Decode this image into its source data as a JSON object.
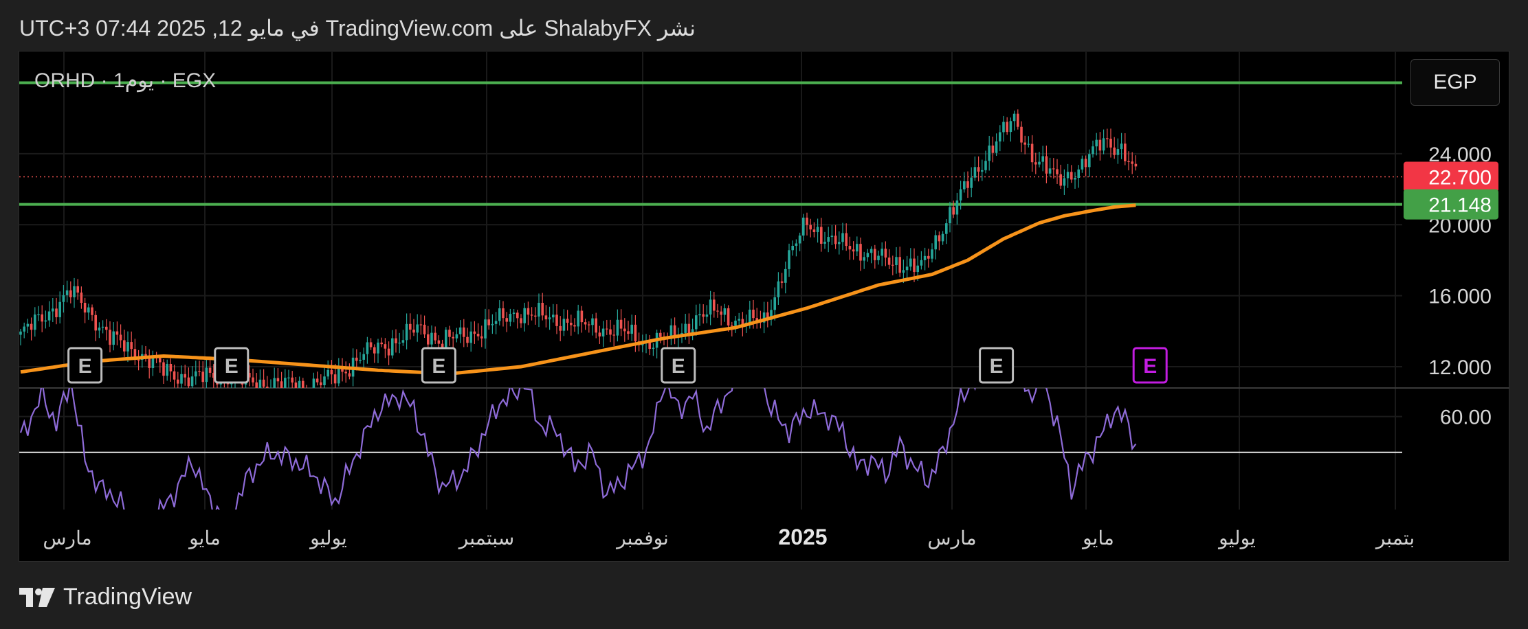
{
  "header": {
    "published_text": "نشر ShalabyFX على TradingView.com في مايو 12, 2025 07:44 UTC+3"
  },
  "symbol_line": "ORHD · 1يوم · EGX",
  "currency": "EGP",
  "footer": {
    "brand": "TradingView",
    "logo_icon": "tradingview-logo-icon"
  },
  "colors": {
    "up": "#26a69a",
    "down": "#ef5350",
    "ema": "#f7931a",
    "rsi": "#8e6bd8",
    "levels": "#4caf50",
    "last_price_badge": "#f23645",
    "support_badge": "#43a047",
    "earnings_future": "#c21de0"
  },
  "chart_data": [
    {
      "type": "candlestick",
      "title": "ORHD · 1يوم · EGX",
      "x_ticks": [
        "مارس",
        "مايو",
        "يوليو",
        "سبتمبر",
        "نوفمبر",
        "2025",
        "مارس",
        "مايو",
        "يوليو",
        "بتمبر"
      ],
      "y_ticks": [
        "24.000",
        "20.000",
        "16.000",
        "12.000"
      ],
      "ylim": [
        10.8,
        29.8
      ],
      "last_price": 22.7,
      "horizontal_levels": [
        28.0,
        21.148
      ],
      "badges": [
        {
          "label": "22.700",
          "value": 22.7,
          "color": "#f23645"
        },
        {
          "label": "21.148",
          "value": 21.148,
          "color": "#43a047"
        }
      ],
      "earnings_markers": [
        {
          "label": "E",
          "date_index": 18,
          "future": false
        },
        {
          "label": "E",
          "date_index": 59,
          "future": false
        },
        {
          "label": "E",
          "date_index": 117,
          "future": false
        },
        {
          "label": "E",
          "date_index": 184,
          "future": false
        },
        {
          "label": "E",
          "date_index": 273,
          "future": false
        },
        {
          "label": "E",
          "date_index": 316,
          "future": true
        }
      ],
      "series": [
        {
          "name": "close",
          "anchors": [
            [
              0,
              13.8
            ],
            [
              8,
              15.1
            ],
            [
              14,
              16.2
            ],
            [
              19,
              15.2
            ],
            [
              25,
              13.6
            ],
            [
              32,
              12.9
            ],
            [
              40,
              11.8
            ],
            [
              48,
              11.3
            ],
            [
              56,
              11.6
            ],
            [
              64,
              11.1
            ],
            [
              72,
              11.0
            ],
            [
              80,
              10.9
            ],
            [
              88,
              11.4
            ],
            [
              95,
              12.6
            ],
            [
              103,
              13.3
            ],
            [
              111,
              14.1
            ],
            [
              118,
              13.5
            ],
            [
              124,
              13.7
            ],
            [
              132,
              14.4
            ],
            [
              139,
              15.1
            ],
            [
              146,
              14.8
            ],
            [
              154,
              14.5
            ],
            [
              162,
              14.2
            ],
            [
              168,
              14.0
            ],
            [
              175,
              13.4
            ],
            [
              182,
              13.6
            ],
            [
              189,
              14.7
            ],
            [
              195,
              15.2
            ],
            [
              201,
              14.5
            ],
            [
              208,
              14.6
            ],
            [
              214,
              17.6
            ],
            [
              220,
              20.3
            ],
            [
              226,
              19.0
            ],
            [
              232,
              18.9
            ],
            [
              238,
              18.2
            ],
            [
              245,
              17.9
            ],
            [
              252,
              17.5
            ],
            [
              259,
              20.3
            ],
            [
              266,
              22.6
            ],
            [
              272,
              24.5
            ],
            [
              278,
              25.9
            ],
            [
              284,
              23.6
            ],
            [
              290,
              22.6
            ],
            [
              297,
              23.2
            ],
            [
              303,
              24.9
            ],
            [
              308,
              24.2
            ],
            [
              312,
              22.7
            ]
          ]
        },
        {
          "name": "ema",
          "anchors": [
            [
              0,
              11.7
            ],
            [
              20,
              12.3
            ],
            [
              40,
              12.6
            ],
            [
              60,
              12.4
            ],
            [
              80,
              12.1
            ],
            [
              100,
              11.8
            ],
            [
              120,
              11.6
            ],
            [
              140,
              12.0
            ],
            [
              160,
              12.8
            ],
            [
              180,
              13.6
            ],
            [
              200,
              14.2
            ],
            [
              220,
              15.3
            ],
            [
              240,
              16.6
            ],
            [
              255,
              17.2
            ],
            [
              265,
              18.0
            ],
            [
              275,
              19.2
            ],
            [
              285,
              20.1
            ],
            [
              292,
              20.5
            ],
            [
              300,
              20.8
            ],
            [
              306,
              21.0
            ],
            [
              312,
              21.1
            ]
          ]
        }
      ]
    },
    {
      "type": "line",
      "title": "",
      "y_ticks": [
        "60.00"
      ],
      "reference_line": 50,
      "ylim": [
        34,
        68
      ],
      "series": [
        {
          "name": "rsi",
          "anchors": [
            [
              0,
              54
            ],
            [
              6,
              66
            ],
            [
              10,
              58
            ],
            [
              14,
              70
            ],
            [
              18,
              48
            ],
            [
              22,
              40
            ],
            [
              26,
              38
            ],
            [
              32,
              30
            ],
            [
              38,
              32
            ],
            [
              44,
              40
            ],
            [
              48,
              48
            ],
            [
              52,
              38
            ],
            [
              58,
              30
            ],
            [
              64,
              44
            ],
            [
              70,
              50
            ],
            [
              76,
              48
            ],
            [
              82,
              44
            ],
            [
              88,
              36
            ],
            [
              95,
              52
            ],
            [
              100,
              62
            ],
            [
              106,
              66
            ],
            [
              110,
              62
            ],
            [
              114,
              50
            ],
            [
              118,
              40
            ],
            [
              124,
              44
            ],
            [
              130,
              56
            ],
            [
              134,
              64
            ],
            [
              138,
              66
            ],
            [
              141,
              70
            ],
            [
              145,
              58
            ],
            [
              150,
              56
            ],
            [
              155,
              46
            ],
            [
              160,
              50
            ],
            [
              164,
              38
            ],
            [
              170,
              44
            ],
            [
              176,
              52
            ],
            [
              180,
              70
            ],
            [
              184,
              62
            ],
            [
              188,
              66
            ],
            [
              192,
              56
            ],
            [
              196,
              64
            ],
            [
              200,
              70
            ],
            [
              206,
              74
            ],
            [
              210,
              62
            ],
            [
              215,
              56
            ],
            [
              220,
              62
            ],
            [
              226,
              60
            ],
            [
              230,
              56
            ],
            [
              234,
              46
            ],
            [
              238,
              48
            ],
            [
              242,
              44
            ],
            [
              246,
              52
            ],
            [
              250,
              46
            ],
            [
              254,
              42
            ],
            [
              258,
              50
            ],
            [
              262,
              62
            ],
            [
              266,
              70
            ],
            [
              270,
              72
            ],
            [
              274,
              78
            ],
            [
              278,
              76
            ],
            [
              282,
              66
            ],
            [
              286,
              70
            ],
            [
              290,
              58
            ],
            [
              294,
              40
            ],
            [
              298,
              48
            ],
            [
              302,
              54
            ],
            [
              306,
              62
            ],
            [
              310,
              58
            ],
            [
              314,
              44
            ]
          ]
        }
      ]
    }
  ]
}
